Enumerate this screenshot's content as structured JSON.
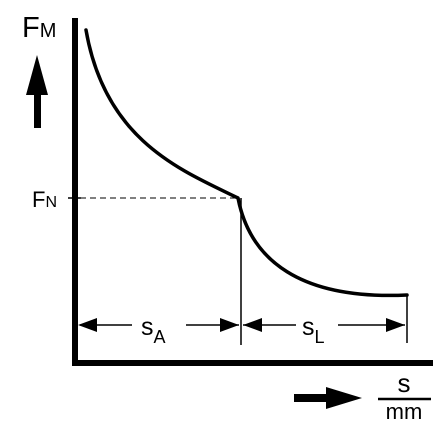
{
  "diagram": {
    "y_axis": {
      "symbol": "F",
      "subscript": "M"
    },
    "level_marker": {
      "symbol": "F",
      "subscript": "N"
    },
    "x_unit": {
      "numerator": "s",
      "denominator": "mm"
    },
    "segments": [
      {
        "symbol": "s",
        "subscript": "A"
      },
      {
        "symbol": "s",
        "subscript": "L"
      }
    ],
    "colors": {
      "ink": "#000000",
      "background": "#ffffff"
    }
  }
}
